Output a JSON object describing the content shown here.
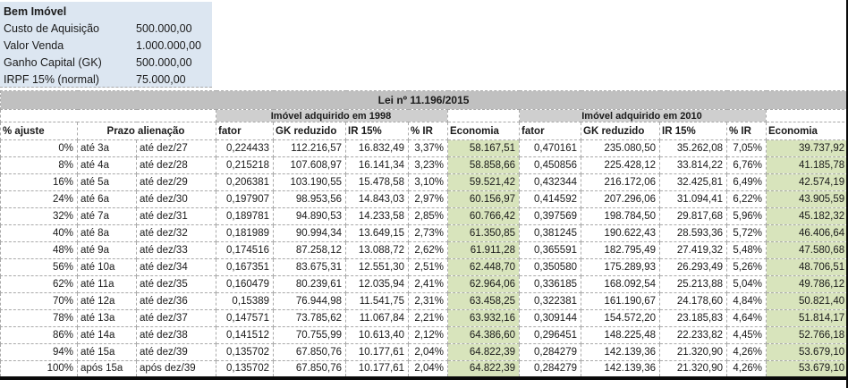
{
  "info_panel": {
    "title": "Bem Imóvel",
    "rows": [
      {
        "label": "Custo de Aquisição",
        "value": "500.000,00"
      },
      {
        "label": "Valor Venda",
        "value": "1.000.000,00"
      },
      {
        "label": "Ganho Capital (GK)",
        "value": "500.000,00"
      },
      {
        "label": "IRPF 15% (normal)",
        "value": "75.000,00"
      }
    ]
  },
  "law_table": {
    "title": "Lei nº 11.196/2015",
    "group_1998": "Imóvel adquirido em 1998",
    "group_2010": "Imóvel adquirido em 2010",
    "columns": [
      "% ajuste",
      "Prazo alienação",
      "fator",
      "GK reduzido",
      "IR 15%",
      "% IR",
      "Economia",
      "fator",
      "GK reduzido",
      "IR 15%",
      "% IR",
      "Economia"
    ],
    "rows": [
      [
        "0%",
        "até 3a",
        "até dez/27",
        "0,224433",
        "112.216,57",
        "16.832,49",
        "3,37%",
        "58.167,51",
        "0,470161",
        "235.080,50",
        "35.262,08",
        "7,05%",
        "39.737,92"
      ],
      [
        "8%",
        "até 4a",
        "até dez/28",
        "0,215218",
        "107.608,97",
        "16.141,34",
        "3,23%",
        "58.858,66",
        "0,450856",
        "225.428,12",
        "33.814,22",
        "6,76%",
        "41.185,78"
      ],
      [
        "16%",
        "até 5a",
        "até dez/29",
        "0,206381",
        "103.190,55",
        "15.478,58",
        "3,10%",
        "59.521,42",
        "0,432344",
        "216.172,06",
        "32.425,81",
        "6,49%",
        "42.574,19"
      ],
      [
        "24%",
        "até 6a",
        "até dez/30",
        "0,197907",
        "98.953,56",
        "14.843,03",
        "2,97%",
        "60.156,97",
        "0,414592",
        "207.296,06",
        "31.094,41",
        "6,22%",
        "43.905,59"
      ],
      [
        "32%",
        "até 7a",
        "até dez/31",
        "0,189781",
        "94.890,53",
        "14.233,58",
        "2,85%",
        "60.766,42",
        "0,397569",
        "198.784,50",
        "29.817,68",
        "5,96%",
        "45.182,32"
      ],
      [
        "40%",
        "até 8a",
        "até dez/32",
        "0,181989",
        "90.994,34",
        "13.649,15",
        "2,73%",
        "61.350,85",
        "0,381245",
        "190.622,43",
        "28.593,36",
        "5,72%",
        "46.406,64"
      ],
      [
        "48%",
        "até 9a",
        "até dez/33",
        "0,174516",
        "87.258,12",
        "13.088,72",
        "2,62%",
        "61.911,28",
        "0,365591",
        "182.795,49",
        "27.419,32",
        "5,48%",
        "47.580,68"
      ],
      [
        "56%",
        "até 10a",
        "até dez/34",
        "0,167351",
        "83.675,31",
        "12.551,30",
        "2,51%",
        "62.448,70",
        "0,350580",
        "175.289,93",
        "26.293,49",
        "5,26%",
        "48.706,51"
      ],
      [
        "62%",
        "até 11a",
        "até dez/35",
        "0,160479",
        "80.239,61",
        "12.035,94",
        "2,41%",
        "62.964,06",
        "0,336185",
        "168.092,54",
        "25.213,88",
        "5,04%",
        "49.786,12"
      ],
      [
        "70%",
        "até 12a",
        "até dez/36",
        "0,15389",
        "76.944,98",
        "11.541,75",
        "2,31%",
        "63.458,25",
        "0,322381",
        "161.190,67",
        "24.178,60",
        "4,84%",
        "50.821,40"
      ],
      [
        "78%",
        "até 13a",
        "até dez/37",
        "0,147571",
        "73.785,62",
        "11.067,84",
        "2,21%",
        "63.932,16",
        "0,309144",
        "154.572,20",
        "23.185,83",
        "4,64%",
        "51.814,17"
      ],
      [
        "86%",
        "até 14a",
        "até dez/38",
        "0,141512",
        "70.755,99",
        "10.613,40",
        "2,12%",
        "64.386,60",
        "0,296451",
        "148.225,48",
        "22.233,82",
        "4,45%",
        "52.766,18"
      ],
      [
        "94%",
        "até 15a",
        "até dez/39",
        "0,135702",
        "67.850,76",
        "10.177,61",
        "2,04%",
        "64.822,39",
        "0,284279",
        "142.139,36",
        "21.320,90",
        "4,26%",
        "53.679,10"
      ],
      [
        "100%",
        "após 15a",
        "após dez/39",
        "0,135702",
        "67.850,76",
        "10.177,61",
        "2,04%",
        "64.822,39",
        "0,284279",
        "142.139,36",
        "21.320,90",
        "4,26%",
        "53.679,10"
      ]
    ]
  },
  "colors": {
    "panel_bg": "#dce6f1",
    "title_band_gray": "#c0c0c0",
    "group_band_gray": "#cfcfcf",
    "economia_green": "#d8e4bc",
    "grid_dashed_gray": "#a9a9a9",
    "frame_black": "#0a0a0a"
  }
}
